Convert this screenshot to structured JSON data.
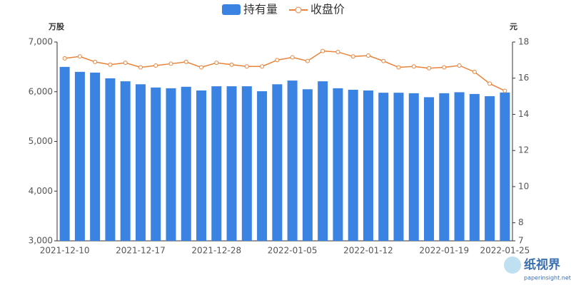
{
  "chart_data": {
    "type": "bar_line",
    "legend": [
      "持有量",
      "收盘价"
    ],
    "y_axis_label": "万股",
    "y2_axis_label": "元",
    "categories": [
      "2021-12-10",
      null,
      null,
      null,
      null,
      "2021-12-17",
      null,
      null,
      null,
      null,
      "2021-12-28",
      null,
      null,
      null,
      null,
      "2022-01-05",
      null,
      null,
      null,
      null,
      "2022-01-12",
      null,
      null,
      null,
      null,
      "2022-01-19",
      null,
      null,
      null,
      "2022-01-25"
    ],
    "series": [
      {
        "name": "持有量",
        "type": "bar",
        "color": "#3a83e2",
        "axis": "y",
        "values": [
          6500,
          6400,
          6385,
          6270,
          6210,
          6150,
          6085,
          6070,
          6100,
          6025,
          6110,
          6110,
          6110,
          6010,
          6150,
          6225,
          6050,
          6210,
          6070,
          6040,
          6025,
          5980,
          5980,
          5970,
          5890,
          5970,
          5990,
          5955,
          5910,
          5985
        ]
      },
      {
        "name": "收盘价",
        "type": "line",
        "color": "#e8833a",
        "axis": "y2",
        "values": [
          17.1,
          17.2,
          16.9,
          16.75,
          16.85,
          16.6,
          16.7,
          16.8,
          16.9,
          16.6,
          16.85,
          16.75,
          16.65,
          16.65,
          17.0,
          17.15,
          16.95,
          17.5,
          17.45,
          17.2,
          17.25,
          16.95,
          16.6,
          16.65,
          16.55,
          16.6,
          16.7,
          16.35,
          15.7,
          15.3
        ]
      }
    ],
    "ylim": [
      3000,
      7000
    ],
    "yticks": [
      {
        "value": 3000,
        "label": "3,000"
      },
      {
        "value": 4000,
        "label": "4,000"
      },
      {
        "value": 5000,
        "label": "5,000"
      },
      {
        "value": 6000,
        "label": "6,000"
      },
      {
        "value": 7000,
        "label": "7,000"
      }
    ],
    "y2lim": [
      7,
      18
    ],
    "y2ticks": [
      7,
      8,
      10,
      12,
      14,
      16,
      18
    ],
    "watermark": [
      "纸视界",
      "paperinsight.net"
    ]
  }
}
